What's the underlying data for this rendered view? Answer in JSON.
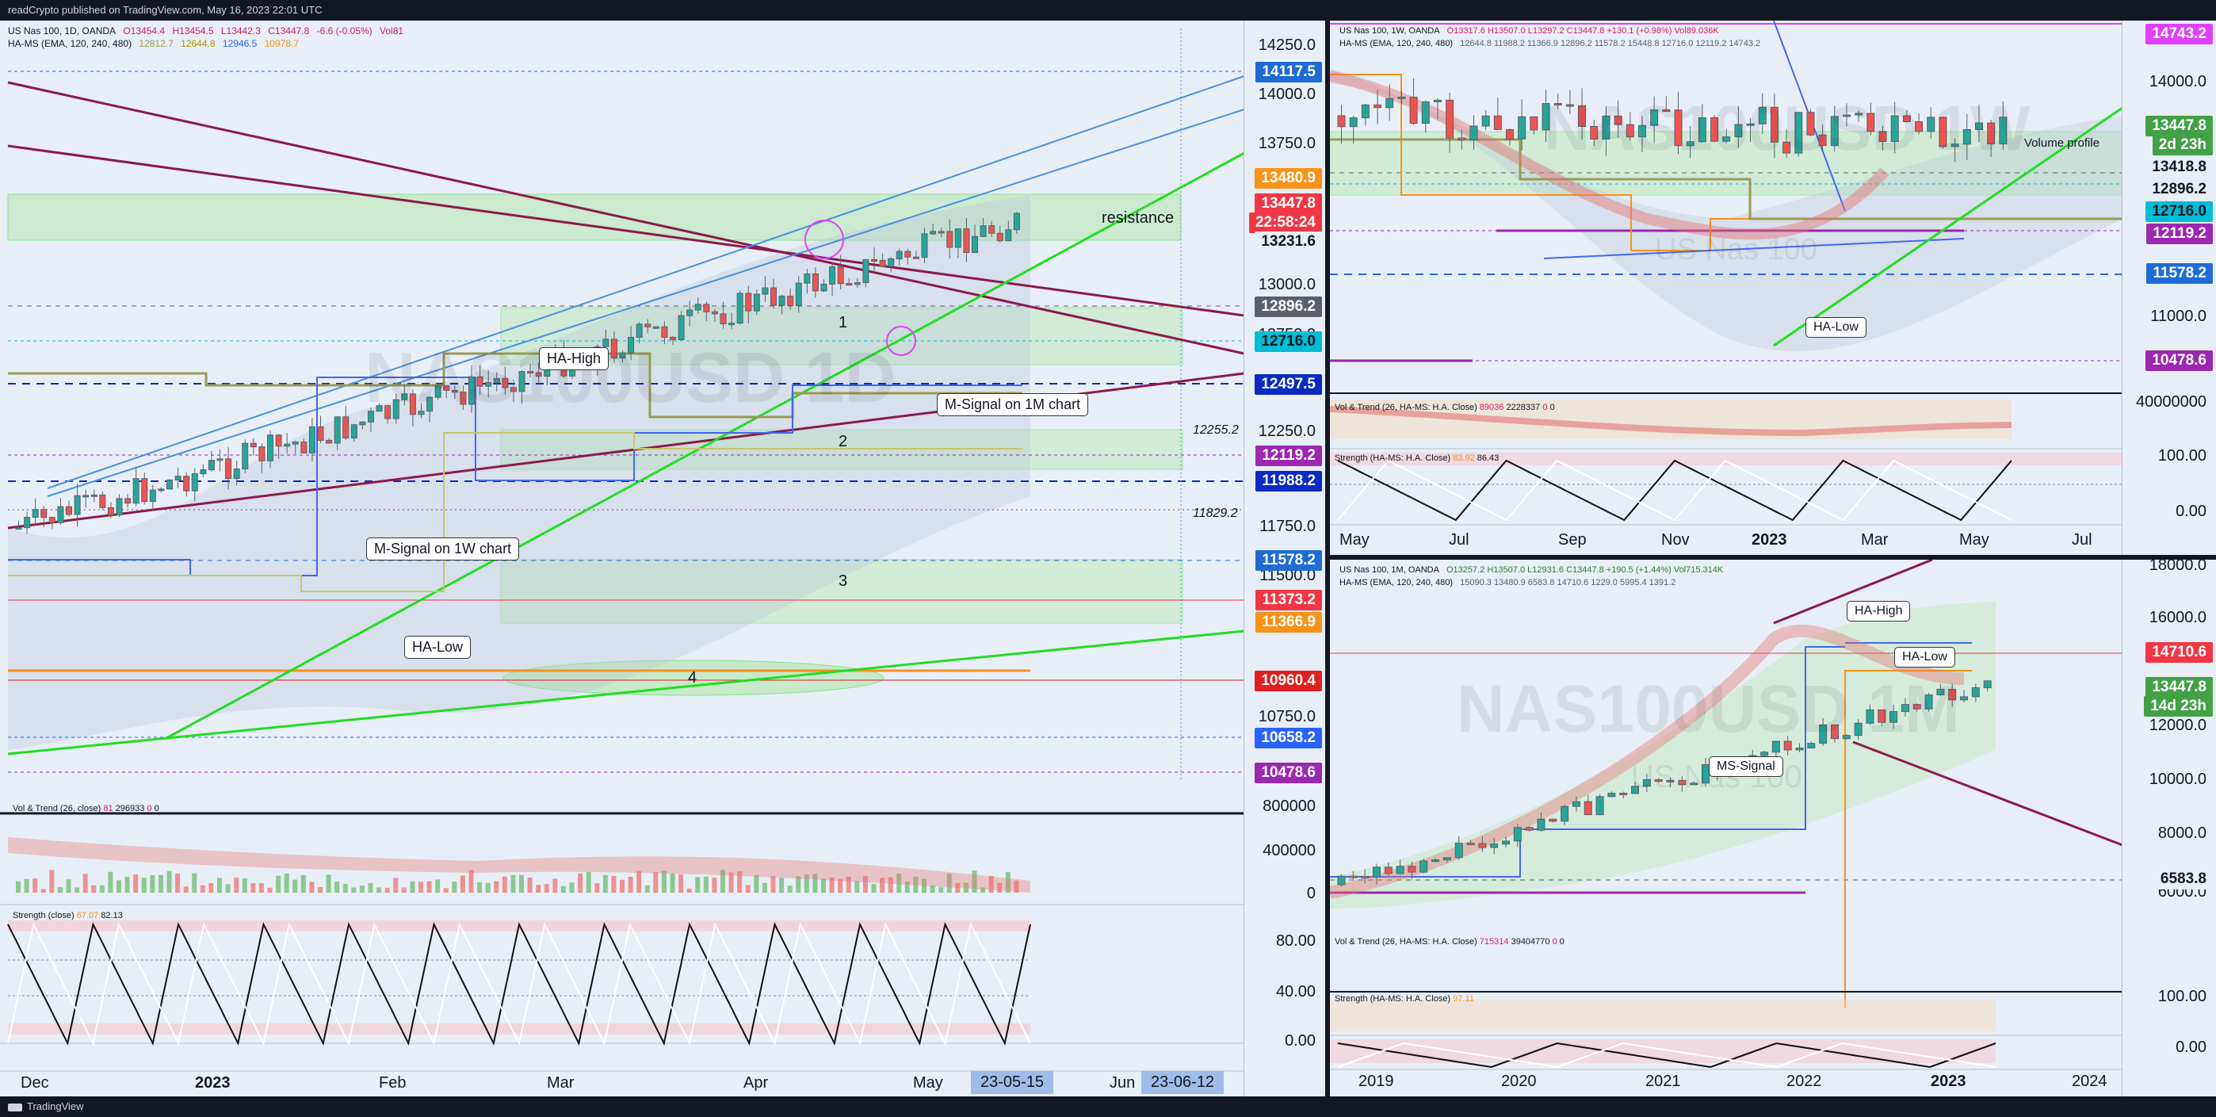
{
  "topbar": {
    "text": "readCrypto published on TradingView.com, May 16, 2023 22:01 UTC"
  },
  "footer": {
    "brand": "TradingView"
  },
  "left": {
    "symbol": "US Nas 100, 1D, OANDA",
    "ohlc": {
      "o": "O13454.4",
      "h": "H13454.5",
      "l": "L13442.3",
      "c": "C13447.8",
      "chg": "-6.6 (-0.05%)",
      "vol": "Vol81"
    },
    "hams": {
      "label": "HA-MS (EMA, 120, 240, 480)",
      "v1": "12812.7",
      "v2": "12644.8",
      "v3": "12946.5",
      "v4": "10978.7"
    },
    "watermark": "NAS100USD 1D",
    "price_ticks": [
      "14250.0",
      "14000.0",
      "13750.0",
      "13000.0",
      "12750.0",
      "12250.0",
      "11750.0",
      "11500.0",
      "10750.0"
    ],
    "tags": [
      {
        "t": "14117.5",
        "c": "#1e6bd6"
      },
      {
        "t": "13480.9",
        "c": "#f7931a"
      },
      {
        "t": "13447.8",
        "c": "#f23645"
      },
      {
        "t": "22:58:24",
        "c": "#f23645"
      },
      {
        "t": "13231.6",
        "c": "#5d606b"
      },
      {
        "t": "12896.2",
        "c": "#5d606b"
      },
      {
        "t": "12716.0",
        "c": "#00bcd4"
      },
      {
        "t": "12497.5",
        "c": "#0b2ac2"
      },
      {
        "t": "12119.2",
        "c": "#9c27b0"
      },
      {
        "t": "11988.2",
        "c": "#0b2ac2"
      },
      {
        "t": "11578.2",
        "c": "#1e6bd6"
      },
      {
        "t": "11373.2",
        "c": "#f23645"
      },
      {
        "t": "11366.9",
        "c": "#f7931a"
      },
      {
        "t": "10960.4",
        "c": "#e02020"
      },
      {
        "t": "10658.2",
        "c": "#2962ff"
      },
      {
        "t": "10478.6",
        "c": "#9c27b0"
      }
    ],
    "level_labels": [
      "12255.2",
      "11829.2"
    ],
    "zones": [
      "1",
      "2",
      "3",
      "4"
    ],
    "resistance": "resistance",
    "callouts": {
      "ha_high": "HA-High",
      "ha_low": "HA-Low",
      "msignal_1w": "M-Signal on 1W chart",
      "msignal_1m": "M-Signal on 1M chart"
    },
    "vol_header": {
      "label": "Vol & Trend (26, close)",
      "v1": "81",
      "v2": "296933",
      "v3": "0",
      "v4": "0"
    },
    "vol_ticks": [
      "800000",
      "400000",
      "0"
    ],
    "str_header": {
      "label": "Strength (close)",
      "v1": "67.07",
      "v2": "82.13"
    },
    "str_ticks": [
      "80.00",
      "40.00",
      "0.00"
    ],
    "dates": [
      "Dec",
      "2023",
      "Feb",
      "Mar",
      "Apr",
      "May",
      "Jun"
    ],
    "date_tags": [
      "23-05-15",
      "23-06-12"
    ]
  },
  "rtop": {
    "symbol": "US Nas 100, 1W, OANDA",
    "ohlc": "O13317.6  H13507.0  L13297.2  C13447.8  +130.1 (+0.98%)  Vol89.036K",
    "hams": {
      "label": "HA-MS (EMA, 120, 240, 480)",
      "vals": "12644.8  11988.2  11366.9  12896.2  11578.2  15448.8  12716.0  12119.2  14743.2"
    },
    "watermark": "NAS100USD 1W",
    "sub_watermark": "US Nas 100",
    "tags": [
      {
        "t": "14743.2",
        "c": "#e040fb"
      },
      {
        "t": "13447.8",
        "c": "#43a047"
      },
      {
        "t": "2d 23h",
        "c": "#43a047"
      },
      {
        "t": "13418.8",
        "c": "#e8eef6"
      },
      {
        "t": "12896.2",
        "c": "#e8eef6"
      },
      {
        "t": "12716.0",
        "c": "#00bcd4"
      },
      {
        "t": "12119.2",
        "c": "#9c27b0"
      },
      {
        "t": "11578.2",
        "c": "#1e6bd6"
      },
      {
        "t": "10478.6",
        "c": "#9c27b0"
      }
    ],
    "price_ticks": [
      "14000.0",
      "11000.0"
    ],
    "volume_profile": "Volume profile",
    "callout_halow": "HA-Low",
    "vol_header": {
      "label": "Vol & Trend (26, HA-MS: H.A. Close)",
      "v1": "89036",
      "v2": "2228337",
      "v3": "0",
      "v4": "0"
    },
    "vol_tick": "40000000",
    "str_header": {
      "label": "Strength (HA-MS: H.A. Close)",
      "v1": "83.92",
      "v2": "86.43"
    },
    "str_ticks": [
      "100.00",
      "0.00"
    ],
    "dates": [
      "May",
      "Jul",
      "Sep",
      "Nov",
      "2023",
      "Mar",
      "May",
      "Jul"
    ]
  },
  "rbot": {
    "symbol": "US Nas 100, 1M, OANDA",
    "ohlc": "O13257.2  H13507.0  L12931.6  C13447.8  +190.5 (+1.44%)  Vol715.314K",
    "hams": {
      "label": "HA-MS (EMA, 120, 240, 480)",
      "vals": "15090.3  13480.9  6583.8  14710.6  1229.0  5995.4  1391.2"
    },
    "watermark": "NAS100USD 1M",
    "sub_watermark": "US Nas 100",
    "price_ticks": [
      "18000.0",
      "16000.0",
      "12000.0",
      "10000.0",
      "8000.0",
      "6000.0"
    ],
    "tags": [
      {
        "t": "14710.6",
        "c": "#f23645"
      },
      {
        "t": "13447.8",
        "c": "#43a047"
      },
      {
        "t": "14d 23h",
        "c": "#43a047"
      },
      {
        "t": "6583.8",
        "c": "#e8eef6"
      }
    ],
    "callouts": {
      "ha_high": "HA-High",
      "ha_low": "HA-Low",
      "ms_signal": "MS-Signal"
    },
    "vol_header": {
      "label": "Vol & Trend (26, HA-MS: H.A. Close)",
      "v1": "715314",
      "v2": "39404770",
      "v3": "0",
      "v4": "0"
    },
    "str_header": {
      "label": "Strength (HA-MS: H.A. Close)",
      "v1": "97.11"
    },
    "str_ticks": [
      "100.00",
      "0.00"
    ],
    "dates": [
      "2019",
      "2020",
      "2021",
      "2022",
      "2023",
      "2024"
    ]
  },
  "colors": {
    "bg": "#e8eef6",
    "frame": "#131722",
    "green": "#22dd22",
    "maroon": "#8b1a4a",
    "blue": "#4a90e2"
  }
}
